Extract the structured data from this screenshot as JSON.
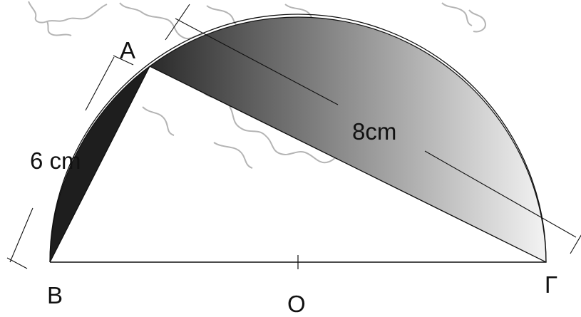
{
  "diagram": {
    "points": {
      "A": "A",
      "B": "B",
      "C": "Γ",
      "O": "O"
    },
    "lengths": {
      "AB": "6 cm",
      "AC": "8cm"
    },
    "colors": {
      "ink": "#111111",
      "map_outline": "#b4b4b4",
      "dark_shade": "#1e1e1e",
      "gradient_start": "#2a2a2a",
      "gradient_end": "#f4f4f4"
    }
  }
}
